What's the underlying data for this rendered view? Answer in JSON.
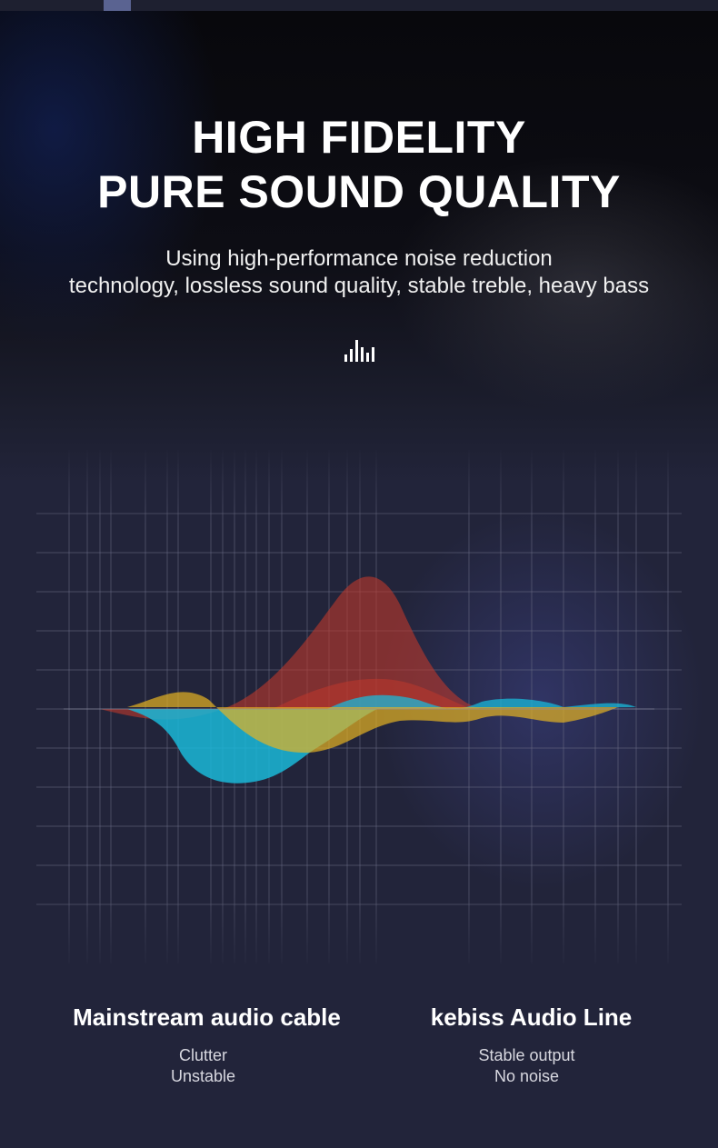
{
  "heading": {
    "line1": "HIGH FIDELITY",
    "line2": "PURE SOUND QUALITY"
  },
  "subheading": {
    "line1": "Using high-performance noise reduction",
    "line2": "technology, lossless sound quality, stable treble, heavy bass"
  },
  "icon": "audio-bars-icon",
  "colors": {
    "red_wave": "#c0392b",
    "yellow_wave": "#e6b422",
    "cyan_wave": "#1ab8d8",
    "background": "#22243a"
  },
  "comparison": [
    {
      "title": "Mainstream audio cable",
      "lines": [
        "Clutter",
        "Unstable"
      ]
    },
    {
      "title": "kebiss Audio Line",
      "lines": [
        "Stable output",
        "No noise"
      ]
    }
  ]
}
